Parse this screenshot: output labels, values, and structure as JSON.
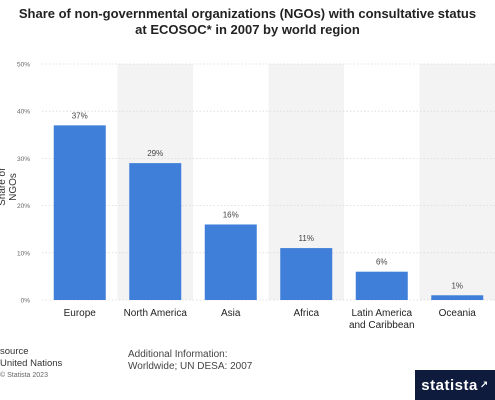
{
  "chart_data": {
    "type": "bar",
    "title_line1": "Share of non-governmental organizations (NGOs) with consultative status",
    "title_line2": "at ECOSOC* in 2007 by world region",
    "ylabel": "Share of NGOs",
    "categories": [
      [
        "Europe"
      ],
      [
        "North America"
      ],
      [
        "Asia"
      ],
      [
        "Africa"
      ],
      [
        "Latin America",
        "and Caribbean"
      ],
      [
        "Oceania"
      ]
    ],
    "values": [
      37,
      29,
      16,
      11,
      6,
      1
    ],
    "value_labels": [
      "37%",
      "29%",
      "16%",
      "11%",
      "6%",
      "1%"
    ],
    "yticks": [
      0,
      10,
      20,
      30,
      40,
      50
    ],
    "ytick_labels": [
      "0%",
      "10%",
      "20%",
      "30%",
      "40%",
      "50%"
    ],
    "ylim": [
      0,
      50
    ],
    "bar_color": "#3f7fd9",
    "band_color": "#f3f3f3",
    "grid": true
  },
  "footer": {
    "source_label": "source",
    "source_name": "United Nations",
    "copyright": "© Statista 2023",
    "info_label": "Additional Information:",
    "info_text": "Worldwide; UN DESA: 2007"
  },
  "brand": {
    "name": "statista",
    "icon": "arrow-icon"
  }
}
